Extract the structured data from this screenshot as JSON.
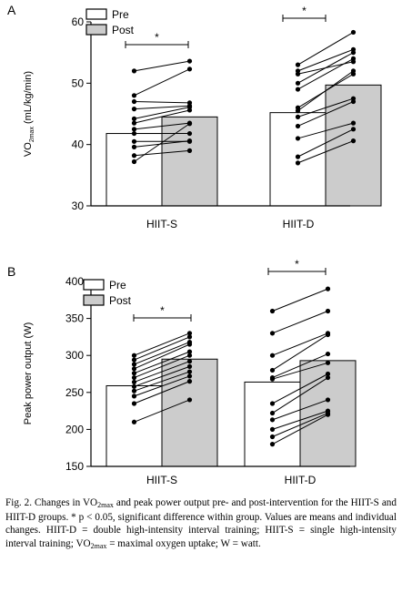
{
  "figure": {
    "charts": [
      {
        "panel": "A",
        "type": "bar",
        "ylabel_main": "VO",
        "ylabel_sub": "2max",
        "ylabel_unit": " (mL/kg/min)",
        "categories": [
          "HIIT-S",
          "HIIT-D"
        ],
        "ylim": [
          30,
          60
        ],
        "yticks": [
          "30",
          "40",
          "50",
          "60"
        ],
        "legend": [
          "Pre",
          "Post"
        ],
        "significance": "*",
        "colors": {
          "pre": "#ffffff",
          "post": "#cccccc",
          "line": "#000000"
        }
      },
      {
        "panel": "B",
        "type": "bar",
        "ylabel": "Peak power output (W)",
        "categories": [
          "HIIT-S",
          "HIIT-D"
        ],
        "ylim": [
          150,
          400
        ],
        "yticks": [
          "150",
          "200",
          "250",
          "300",
          "350",
          "400"
        ],
        "legend": [
          "Pre",
          "Post"
        ],
        "significance": "*",
        "colors": {
          "pre": "#ffffff",
          "post": "#cccccc",
          "line": "#000000"
        }
      }
    ]
  },
  "chart_data": [
    {
      "type": "bar",
      "panel": "A",
      "categories": [
        "HIIT-S",
        "HIIT-D"
      ],
      "series": [
        {
          "name": "Pre",
          "values": [
            41.8,
            45.2
          ]
        },
        {
          "name": "Post",
          "values": [
            44.5,
            49.7
          ]
        }
      ],
      "individual": [
        {
          "group": "HIIT-S",
          "pre": [
            52.0,
            48.0,
            47.0,
            45.8,
            44.2,
            43.5,
            42.5,
            41.8,
            40.5,
            39.6,
            38.2,
            37.2
          ],
          "post": [
            53.6,
            52.3,
            46.8,
            46.3,
            46.1,
            45.6,
            43.5,
            41.8,
            40.5,
            40.6,
            39.0,
            43.4
          ]
        },
        {
          "group": "HIIT-D",
          "pre": [
            53.0,
            52.0,
            51.5,
            50.0,
            49.0,
            46.0,
            45.5,
            44.5,
            43.0,
            41.0,
            38.0,
            37.0
          ],
          "post": [
            58.3,
            55.5,
            53.5,
            55.0,
            54.0,
            51.5,
            52.0,
            47.5,
            47.0,
            43.5,
            42.5,
            40.6
          ]
        }
      ],
      "ylabel": "VO2max (mL/kg/min)",
      "ylim": [
        30,
        60
      ]
    },
    {
      "type": "bar",
      "panel": "B",
      "categories": [
        "HIIT-S",
        "HIIT-D"
      ],
      "series": [
        {
          "name": "Pre",
          "values": [
            259,
            264
          ]
        },
        {
          "name": "Post",
          "values": [
            295,
            293
          ]
        }
      ],
      "individual": [
        {
          "group": "HIIT-S",
          "pre": [
            300,
            294,
            288,
            282,
            276,
            270,
            264,
            258,
            252,
            245,
            235,
            210
          ],
          "post": [
            330,
            325,
            318,
            315,
            305,
            300,
            292,
            285,
            278,
            272,
            265,
            240
          ]
        },
        {
          "group": "HIIT-D",
          "pre": [
            360,
            330,
            300,
            280,
            270,
            268,
            235,
            222,
            213,
            200,
            190,
            180
          ],
          "post": [
            390,
            360,
            330,
            328,
            302,
            290,
            275,
            270,
            240,
            225,
            222,
            220
          ]
        }
      ],
      "ylabel": "Peak power output (W)",
      "ylim": [
        150,
        400
      ]
    }
  ],
  "caption": {
    "p1": "Fig. 2. Changes in VO",
    "p1_sub": "2max",
    "p2": " and peak power output pre- and post-intervention for the HIIT-S and HIIT-D groups. * p < 0.05, significant difference within group. Values are means and individual changes. HIIT-D = double high-intensity interval training; HIIT-S = single high-intensity interval training; VO",
    "p2_sub": "2max",
    "p3": " = maximal oxygen uptake; W = watt."
  }
}
